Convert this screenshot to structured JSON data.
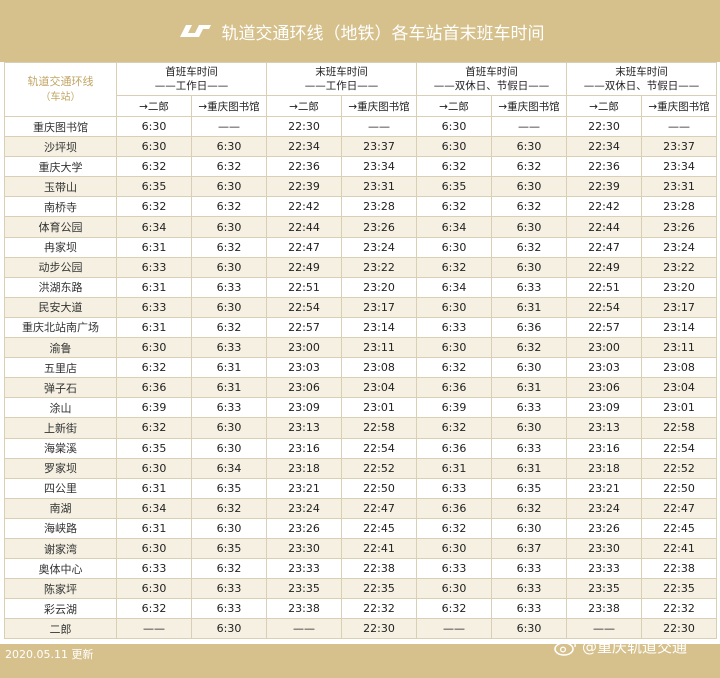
{
  "header": {
    "title": "轨道交通环线（地铁）各车站首末班车时间"
  },
  "table": {
    "corner_label": "轨道交通环线",
    "corner_sub": "（车站）",
    "groups": [
      {
        "line1": "首班车时间",
        "line2": "——工作日——"
      },
      {
        "line1": "末班车时间",
        "line2": "——工作日——"
      },
      {
        "line1": "首班车时间",
        "line2": "——双休日、节假日——"
      },
      {
        "line1": "末班车时间",
        "line2": "——双休日、节假日——"
      }
    ],
    "dir_a": "→二郎",
    "dir_b": "→重庆图书馆",
    "rows": [
      [
        "重庆图书馆",
        "6:30",
        "——",
        "22:30",
        "——",
        "6:30",
        "——",
        "22:30",
        "——"
      ],
      [
        "沙坪坝",
        "6:30",
        "6:30",
        "22:34",
        "23:37",
        "6:30",
        "6:30",
        "22:34",
        "23:37"
      ],
      [
        "重庆大学",
        "6:32",
        "6:32",
        "22:36",
        "23:34",
        "6:32",
        "6:32",
        "22:36",
        "23:34"
      ],
      [
        "玉带山",
        "6:35",
        "6:30",
        "22:39",
        "23:31",
        "6:35",
        "6:30",
        "22:39",
        "23:31"
      ],
      [
        "南桥寺",
        "6:32",
        "6:32",
        "22:42",
        "23:28",
        "6:32",
        "6:32",
        "22:42",
        "23:28"
      ],
      [
        "体育公园",
        "6:34",
        "6:30",
        "22:44",
        "23:26",
        "6:34",
        "6:30",
        "22:44",
        "23:26"
      ],
      [
        "冉家坝",
        "6:31",
        "6:32",
        "22:47",
        "23:24",
        "6:30",
        "6:32",
        "22:47",
        "23:24"
      ],
      [
        "动步公园",
        "6:33",
        "6:30",
        "22:49",
        "23:22",
        "6:32",
        "6:30",
        "22:49",
        "23:22"
      ],
      [
        "洪湖东路",
        "6:31",
        "6:33",
        "22:51",
        "23:20",
        "6:34",
        "6:33",
        "22:51",
        "23:20"
      ],
      [
        "民安大道",
        "6:33",
        "6:30",
        "22:54",
        "23:17",
        "6:30",
        "6:31",
        "22:54",
        "23:17"
      ],
      [
        "重庆北站南广场",
        "6:31",
        "6:32",
        "22:57",
        "23:14",
        "6:33",
        "6:36",
        "22:57",
        "23:14"
      ],
      [
        "渝鲁",
        "6:30",
        "6:33",
        "23:00",
        "23:11",
        "6:30",
        "6:32",
        "23:00",
        "23:11"
      ],
      [
        "五里店",
        "6:32",
        "6:31",
        "23:03",
        "23:08",
        "6:32",
        "6:30",
        "23:03",
        "23:08"
      ],
      [
        "弹子石",
        "6:36",
        "6:31",
        "23:06",
        "23:04",
        "6:36",
        "6:31",
        "23:06",
        "23:04"
      ],
      [
        "涂山",
        "6:39",
        "6:33",
        "23:09",
        "23:01",
        "6:39",
        "6:33",
        "23:09",
        "23:01"
      ],
      [
        "上新街",
        "6:32",
        "6:30",
        "23:13",
        "22:58",
        "6:32",
        "6:30",
        "23:13",
        "22:58"
      ],
      [
        "海棠溪",
        "6:35",
        "6:30",
        "23:16",
        "22:54",
        "6:36",
        "6:33",
        "23:16",
        "22:54"
      ],
      [
        "罗家坝",
        "6:30",
        "6:34",
        "23:18",
        "22:52",
        "6:31",
        "6:31",
        "23:18",
        "22:52"
      ],
      [
        "四公里",
        "6:31",
        "6:35",
        "23:21",
        "22:50",
        "6:33",
        "6:35",
        "23:21",
        "22:50"
      ],
      [
        "南湖",
        "6:34",
        "6:32",
        "23:24",
        "22:47",
        "6:36",
        "6:32",
        "23:24",
        "22:47"
      ],
      [
        "海峡路",
        "6:31",
        "6:30",
        "23:26",
        "22:45",
        "6:32",
        "6:30",
        "23:26",
        "22:45"
      ],
      [
        "谢家湾",
        "6:30",
        "6:35",
        "23:30",
        "22:41",
        "6:30",
        "6:37",
        "23:30",
        "22:41"
      ],
      [
        "奥体中心",
        "6:33",
        "6:32",
        "23:33",
        "22:38",
        "6:33",
        "6:33",
        "23:33",
        "22:38"
      ],
      [
        "陈家坪",
        "6:30",
        "6:33",
        "23:35",
        "22:35",
        "6:30",
        "6:33",
        "23:35",
        "22:35"
      ],
      [
        "彩云湖",
        "6:32",
        "6:33",
        "23:38",
        "22:32",
        "6:32",
        "6:33",
        "23:38",
        "22:32"
      ],
      [
        "二郎",
        "——",
        "6:30",
        "——",
        "22:30",
        "——",
        "6:30",
        "——",
        "22:30"
      ]
    ]
  },
  "footer": {
    "date": "2020.05.11 更新",
    "watermark": "@重庆轨道交通"
  },
  "colors": {
    "background": "#d6c08b",
    "accent": "#c2a664",
    "stripe": "#f5f0e2"
  },
  "icons": {
    "logo": "crt-logo-icon",
    "weibo": "weibo-icon"
  }
}
